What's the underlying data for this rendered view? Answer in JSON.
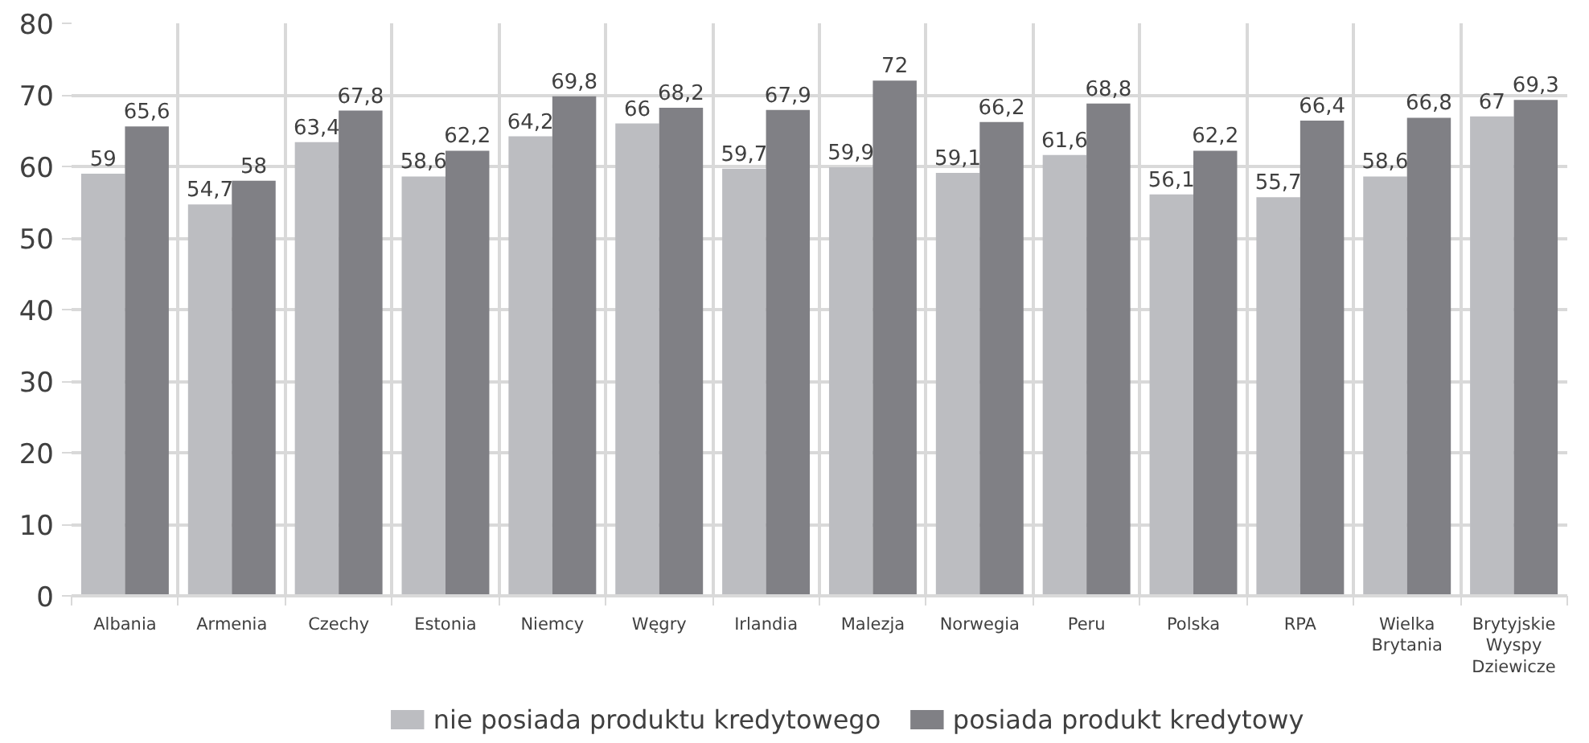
{
  "chart_data": {
    "type": "bar",
    "categories": [
      "Albania",
      "Armenia",
      "Czechy",
      "Estonia",
      "Niemcy",
      "Węgry",
      "Irlandia",
      "Malezja",
      "Norwegia",
      "Peru",
      "Polska",
      "RPA",
      "Wielka Brytania",
      "Brytyjskie Wyspy Dziewicze"
    ],
    "series": [
      {
        "name": "nie posiada produktu kredytowego",
        "color": "#bcbdc1",
        "values": [
          59,
          54.7,
          63.4,
          58.6,
          64.2,
          66,
          59.7,
          59.9,
          59.1,
          61.6,
          56.1,
          55.7,
          58.6,
          67
        ],
        "value_labels": [
          "59",
          "54,7",
          "63,4",
          "58,6",
          "64,2",
          "66",
          "59,7",
          "59,9",
          "59,1",
          "61,6",
          "56,1",
          "55,7",
          "58,6",
          "67"
        ]
      },
      {
        "name": "posiada produkt kredytowy",
        "color": "#808085",
        "values": [
          65.6,
          58,
          67.8,
          62.2,
          69.8,
          68.2,
          67.9,
          72,
          66.2,
          68.8,
          62.2,
          66.4,
          66.8,
          69.3
        ],
        "value_labels": [
          "65,6",
          "58",
          "67,8",
          "62,2",
          "69,8",
          "68,2",
          "67,9",
          "72",
          "66,2",
          "68,8",
          "62,2",
          "66,4",
          "66,8",
          "69,3"
        ]
      }
    ],
    "ylim": [
      0,
      80
    ],
    "yticks": [
      0,
      10,
      20,
      30,
      40,
      50,
      60,
      70,
      80
    ],
    "grid": true,
    "legend": "bottom"
  }
}
